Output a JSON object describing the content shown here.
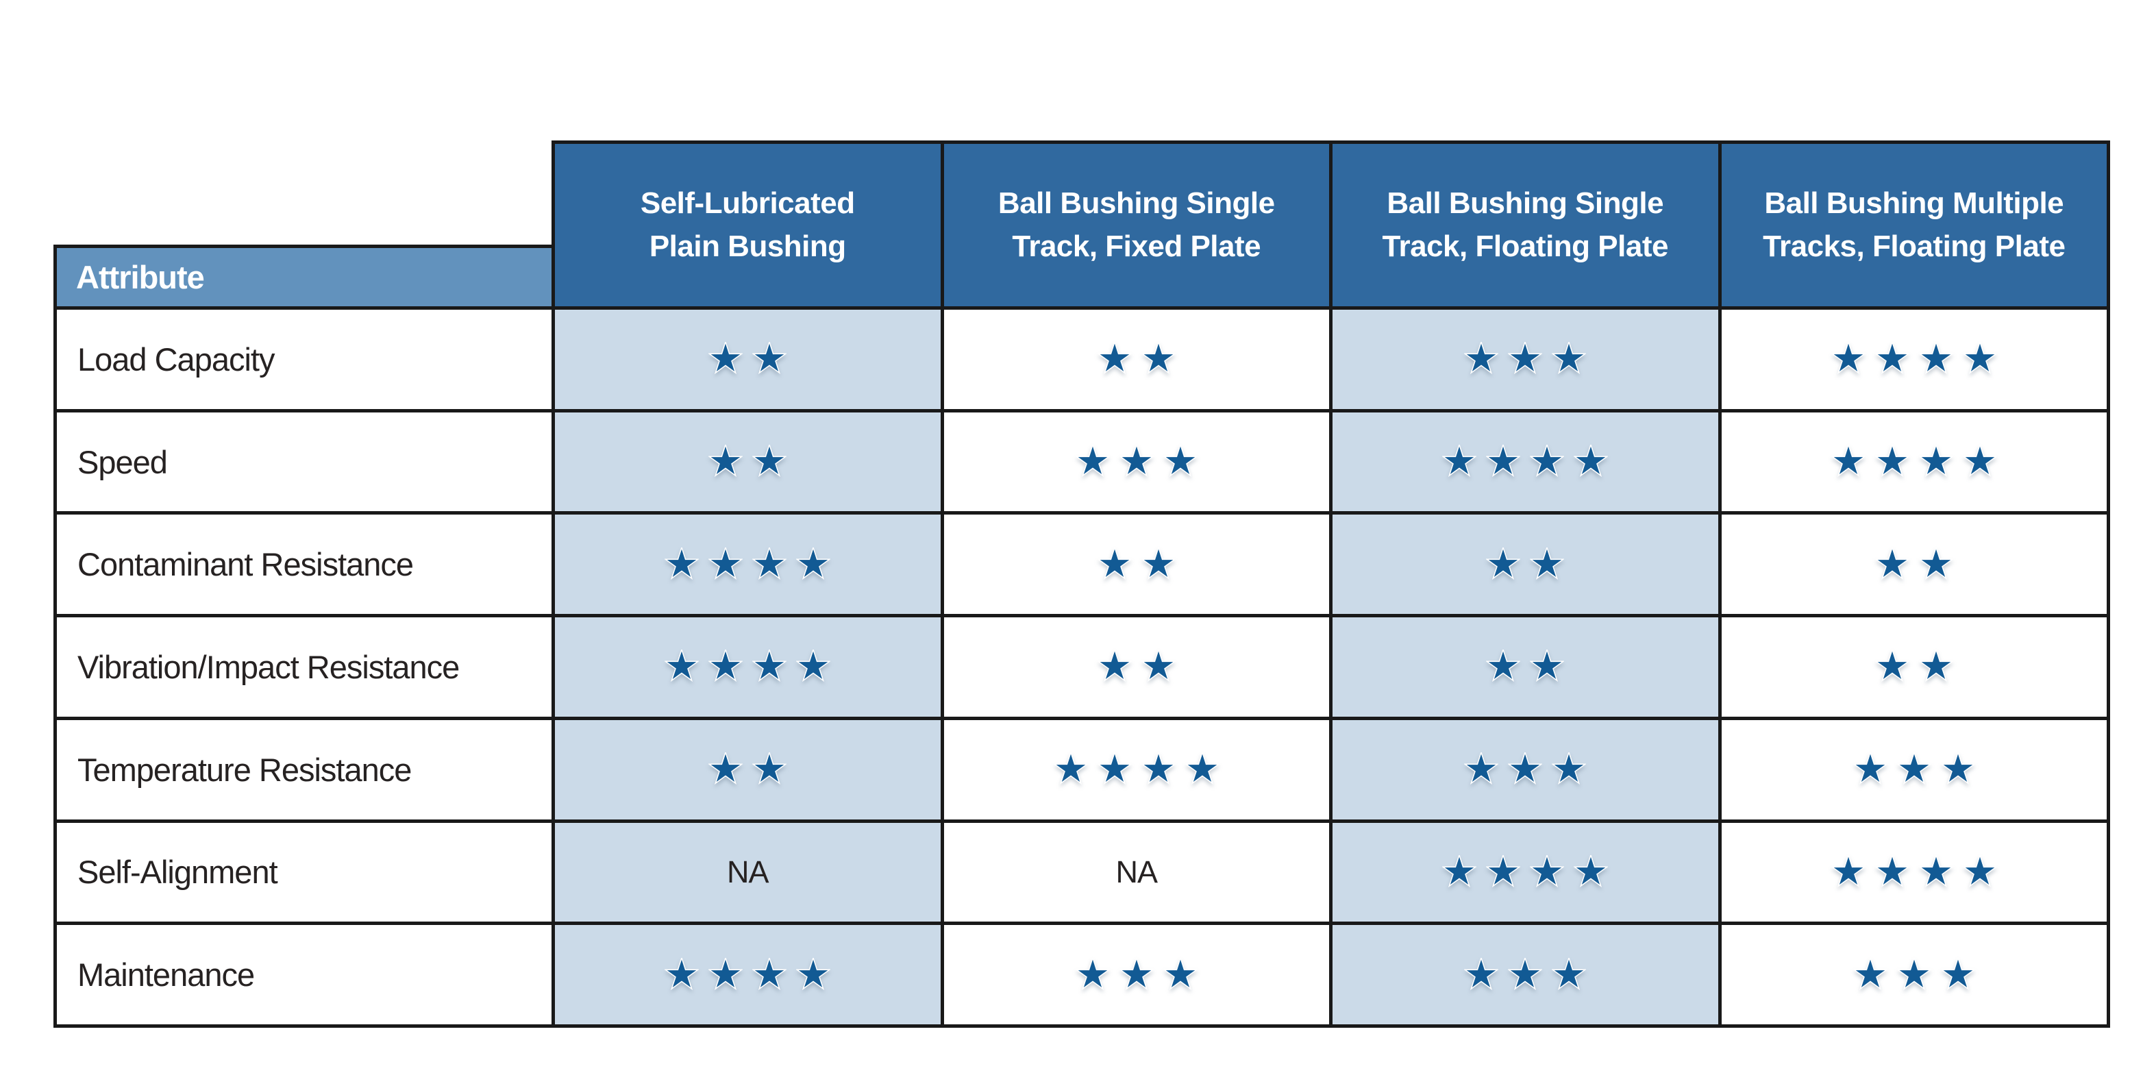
{
  "table": {
    "attribute_header": "Attribute",
    "na_label": "NA",
    "columns": [
      {
        "label": "Self-Lubricated Plain Bushing",
        "lines": [
          "Self-Lubricated",
          "Plain Bushing"
        ]
      },
      {
        "label": "Ball Bushing Single Track, Fixed Plate",
        "lines": [
          "Ball Bushing Single",
          "Track, Fixed Plate"
        ]
      },
      {
        "label": "Ball Bushing Single Track, Floating Plate",
        "lines": [
          "Ball Bushing Single",
          "Track, Floating Plate"
        ]
      },
      {
        "label": "Ball Bushing Multiple Tracks, Floating Plate",
        "lines": [
          "Ball Bushing Multiple",
          "Tracks, Floating Plate"
        ]
      }
    ],
    "rows": [
      {
        "attribute": "Load Capacity",
        "ratings": [
          2,
          2,
          3,
          4
        ]
      },
      {
        "attribute": "Speed",
        "ratings": [
          2,
          3,
          4,
          4
        ]
      },
      {
        "attribute": "Contaminant Resistance",
        "ratings": [
          4,
          2,
          2,
          2
        ]
      },
      {
        "attribute": "Vibration/Impact Resistance",
        "ratings": [
          4,
          2,
          2,
          2
        ]
      },
      {
        "attribute": "Temperature Resistance",
        "ratings": [
          2,
          4,
          3,
          3
        ]
      },
      {
        "attribute": "Self-Alignment",
        "ratings": [
          "NA",
          "NA",
          4,
          4
        ]
      },
      {
        "attribute": "Maintenance",
        "ratings": [
          4,
          3,
          3,
          3
        ]
      }
    ],
    "colors": {
      "header_blue": "#30699F",
      "attribute_band_blue": "#6292BD",
      "shaded_cell_blue": "#CBDAE8",
      "star_blue": "#125A94",
      "border_black": "#191919",
      "text_dark": "#262222"
    },
    "max_rating": 4
  },
  "chart_data": {
    "type": "table",
    "title": "Bushing attribute comparison (star ratings, max 4)",
    "categories": [
      "Self-Lubricated Plain Bushing",
      "Ball Bushing Single Track, Fixed Plate",
      "Ball Bushing Single Track, Floating Plate",
      "Ball Bushing Multiple Tracks, Floating Plate"
    ],
    "series": [
      {
        "name": "Load Capacity",
        "values": [
          2,
          2,
          3,
          4
        ]
      },
      {
        "name": "Speed",
        "values": [
          2,
          3,
          4,
          4
        ]
      },
      {
        "name": "Contaminant Resistance",
        "values": [
          4,
          2,
          2,
          2
        ]
      },
      {
        "name": "Vibration/Impact Resistance",
        "values": [
          4,
          2,
          2,
          2
        ]
      },
      {
        "name": "Temperature Resistance",
        "values": [
          2,
          4,
          3,
          3
        ]
      },
      {
        "name": "Self-Alignment",
        "values": [
          null,
          null,
          4,
          4
        ]
      },
      {
        "name": "Maintenance",
        "values": [
          4,
          3,
          3,
          3
        ]
      }
    ]
  }
}
